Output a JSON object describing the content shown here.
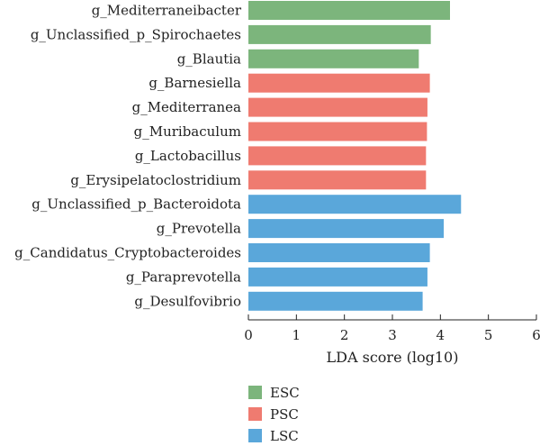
{
  "chart_data": {
    "type": "bar",
    "orientation": "horizontal",
    "categories": [
      "g_Mediterraneibacter",
      "g_Unclassified_p_Spirochaetes",
      "g_Blautia",
      "g_Barnesiella",
      "g_Mediterranea",
      "g_Muribaculum",
      "g_Lactobacillus",
      "g_Erysipelatoclostridium",
      "g_Unclassified_p_Bacteroidota",
      "g_Prevotella",
      "g_Candidatus_Cryptobacteroides",
      "g_Paraprevotella",
      "g_Desulfovibrio"
    ],
    "values": [
      4.2,
      3.8,
      3.55,
      3.78,
      3.73,
      3.72,
      3.7,
      3.7,
      4.43,
      4.07,
      3.78,
      3.73,
      3.63
    ],
    "groups": [
      "ESC",
      "ESC",
      "ESC",
      "PSC",
      "PSC",
      "PSC",
      "PSC",
      "PSC",
      "LSC",
      "LSC",
      "LSC",
      "LSC",
      "LSC"
    ],
    "xlabel": "LDA score (log10)",
    "xlim": [
      0,
      6
    ],
    "xticks": [
      0,
      1,
      2,
      3,
      4,
      5,
      6
    ],
    "grid": false,
    "legend": {
      "placement": "bottom-center",
      "entries": [
        {
          "name": "ESC",
          "color": "#7cb57c"
        },
        {
          "name": "PSC",
          "color": "#ef7b70"
        },
        {
          "name": "LSC",
          "color": "#5aa7da"
        }
      ]
    }
  }
}
